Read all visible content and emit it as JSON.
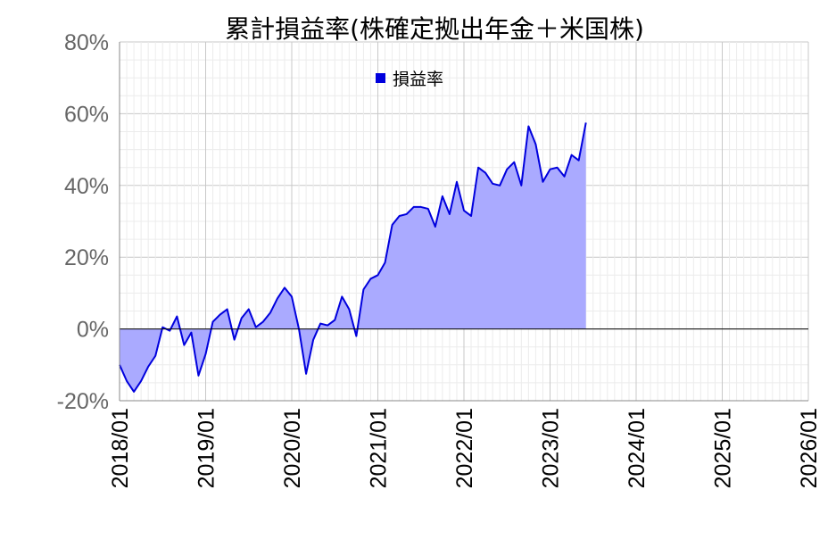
{
  "chart_data": {
    "type": "area",
    "title": "累計損益率(株確定拠出年金＋米国株)",
    "legend": {
      "label": "損益率",
      "placement": "top-center"
    },
    "colors": {
      "line": "#0000dd",
      "fill": "#aaaaff",
      "zero_line": "#000000"
    },
    "ylim": [
      -20,
      80
    ],
    "yticks": [
      -20,
      0,
      20,
      40,
      60,
      80
    ],
    "ytick_labels": [
      "-20%",
      "0%",
      "20%",
      "40%",
      "60%",
      "80%"
    ],
    "xlim": [
      "2018-01",
      "2026-01"
    ],
    "xtick_labels": [
      "2018/01",
      "2019/01",
      "2020/01",
      "2021/01",
      "2022/01",
      "2023/01",
      "2024/01",
      "2025/01",
      "2026/01"
    ],
    "grid": true,
    "series": [
      {
        "name": "損益率",
        "x": [
          "2018-01",
          "2018-02",
          "2018-03",
          "2018-04",
          "2018-05",
          "2018-06",
          "2018-07",
          "2018-08",
          "2018-09",
          "2018-10",
          "2018-11",
          "2018-12",
          "2019-01",
          "2019-02",
          "2019-03",
          "2019-04",
          "2019-05",
          "2019-06",
          "2019-07",
          "2019-08",
          "2019-09",
          "2019-10",
          "2019-11",
          "2019-12",
          "2020-01",
          "2020-02",
          "2020-03",
          "2020-04",
          "2020-05",
          "2020-06",
          "2020-07",
          "2020-08",
          "2020-09",
          "2020-10",
          "2020-11",
          "2020-12",
          "2021-01",
          "2021-02",
          "2021-03",
          "2021-04",
          "2021-05",
          "2021-06",
          "2021-07",
          "2021-08",
          "2021-09",
          "2021-10",
          "2021-11",
          "2021-12",
          "2022-01",
          "2022-02",
          "2022-03",
          "2022-04",
          "2022-05",
          "2022-06",
          "2022-07",
          "2022-08",
          "2022-09",
          "2022-10",
          "2022-11",
          "2022-12",
          "2023-01",
          "2023-02",
          "2023-03",
          "2023-04",
          "2023-05",
          "2023-06"
        ],
        "values": [
          -10,
          -14.5,
          -17.5,
          -14.5,
          -10.5,
          -7.5,
          0.5,
          -0.5,
          3.5,
          -4.5,
          -1,
          -13,
          -7,
          2,
          4,
          5.5,
          -3,
          3,
          5.5,
          0.5,
          2,
          4.5,
          8.5,
          11.5,
          9,
          0,
          -12.5,
          -3,
          1.5,
          1,
          2.5,
          9,
          5.5,
          -2,
          11,
          14,
          15,
          18.5,
          29,
          31.5,
          32,
          34,
          34,
          33.5,
          28.5,
          37,
          32,
          41,
          33,
          31.5,
          45,
          43.5,
          40.5,
          40,
          44.5,
          46.5,
          40,
          56.5,
          51.5,
          41,
          44.5,
          45,
          42.5,
          48.5,
          47,
          57.5
        ]
      }
    ]
  }
}
